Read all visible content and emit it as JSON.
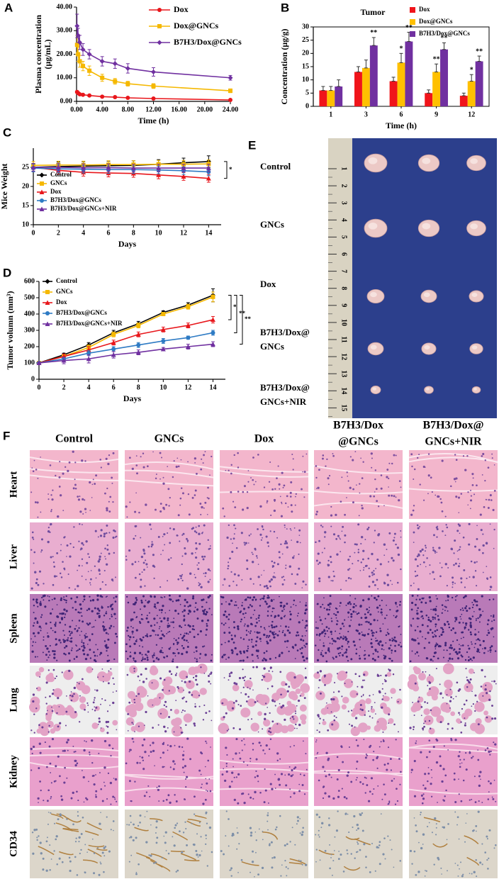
{
  "panel_labels": [
    "A",
    "B",
    "C",
    "D",
    "E",
    "F"
  ],
  "chart_data": [
    {
      "type": "line",
      "xlabel": "Time (h)",
      "ylabel": [
        "Plasma concentration",
        "(μg/mL)"
      ],
      "xlim": [
        0,
        24
      ],
      "ylim": [
        0,
        40
      ],
      "xticks": [
        {
          "value": 0,
          "label": "0.00"
        },
        {
          "value": 4,
          "label": "4.00"
        },
        {
          "value": 8,
          "label": "8.00"
        },
        {
          "value": 12,
          "label": "12.00"
        },
        {
          "value": 16,
          "label": "16.00"
        },
        {
          "value": 20,
          "label": "20.00"
        },
        {
          "value": 24,
          "label": "24.00"
        }
      ],
      "yticks": [
        {
          "value": 0,
          "label": "0.00"
        },
        {
          "value": 10,
          "label": "10.00"
        },
        {
          "value": 20,
          "label": "20.00"
        },
        {
          "value": 30,
          "label": "30.00"
        },
        {
          "value": 40,
          "label": "40.00"
        }
      ],
      "legend": "upper right",
      "x": [
        0.083,
        0.25,
        0.5,
        1,
        2,
        4,
        6,
        8,
        12,
        24
      ],
      "series": [
        {
          "name": "Dox",
          "color": "#e8161b",
          "marker": "circle",
          "values": [
            4,
            3.5,
            3,
            2.8,
            2.5,
            2,
            1.8,
            1.5,
            1.2,
            0.6
          ],
          "errors": [
            0.5,
            0.4,
            0.3,
            0.3,
            0.2,
            0.2,
            0.2,
            0.2,
            0.2,
            0.2
          ]
        },
        {
          "name": "Dox@GNCs",
          "color": "#f5b800",
          "marker": "square",
          "values": [
            24,
            20,
            17,
            15,
            13,
            10,
            8.5,
            7.5,
            6.5,
            4.5
          ],
          "errors": [
            4,
            3,
            2.5,
            2,
            2,
            1.5,
            1.2,
            1,
            1,
            0.8
          ]
        },
        {
          "name": "B7H3/Dox@GNCs",
          "color": "#7030a0",
          "marker": "diamond",
          "values": [
            32,
            28,
            25,
            22,
            20,
            17,
            16,
            14,
            12.5,
            10
          ],
          "errors": [
            5,
            3,
            3,
            2.5,
            2,
            2,
            2,
            2,
            1.8,
            1
          ]
        }
      ]
    },
    {
      "type": "bar",
      "title": "Tumor",
      "xlabel": "Time (h)",
      "ylabel": [
        "Concentration (μg/g)"
      ],
      "ylim": [
        0,
        30
      ],
      "yticks": [
        0,
        5,
        10,
        15,
        20,
        25,
        30
      ],
      "legend": "upper right",
      "categories": [
        "1",
        "3",
        "6",
        "9",
        "12"
      ],
      "series": [
        {
          "name": "Dox",
          "color": "#f0141a",
          "values": [
            6,
            13,
            9.5,
            5,
            4
          ],
          "errors": [
            1.5,
            2,
            1.5,
            1.2,
            1
          ],
          "significance": [
            null,
            null,
            null,
            null,
            null
          ]
        },
        {
          "name": "Dox@GNCs",
          "color": "#ffc000",
          "values": [
            6,
            14.5,
            16.5,
            13,
            9.5
          ],
          "errors": [
            1.5,
            3,
            3.5,
            3,
            2.5
          ],
          "significance": [
            null,
            null,
            "*",
            "**",
            "*"
          ]
        },
        {
          "name": "B7H3/Dox@GNCs",
          "color": "#7030a0",
          "values": [
            7.5,
            23,
            24.5,
            21.5,
            17
          ],
          "errors": [
            2.5,
            3,
            3.5,
            2.5,
            2
          ],
          "significance": [
            null,
            "**",
            "**",
            "**",
            "**"
          ]
        }
      ]
    },
    {
      "type": "line",
      "xlabel": "Days",
      "ylabel": [
        "Mice Weight"
      ],
      "xlim": [
        0,
        15
      ],
      "ylim": [
        10,
        30
      ],
      "xticks": [
        0,
        2,
        4,
        6,
        8,
        10,
        12,
        14
      ],
      "yticks": [
        10,
        15,
        20,
        25
      ],
      "legend": "lower left",
      "significance": [
        "*"
      ],
      "x": [
        0,
        2,
        4,
        6,
        8,
        10,
        12,
        14
      ],
      "series": [
        {
          "name": "Control",
          "color": "#000000",
          "marker": "diamond",
          "values": [
            25,
            25.2,
            25.3,
            25.4,
            25.5,
            25.8,
            26.2,
            26.5
          ],
          "errors": [
            1,
            1.2,
            1.2,
            1.2,
            1.2,
            1.2,
            1.2,
            1.5
          ]
        },
        {
          "name": "GNCs",
          "color": "#f5b800",
          "marker": "square",
          "values": [
            25.5,
            25.6,
            25.6,
            25.7,
            25.7,
            25.8,
            25.8,
            25.9
          ],
          "errors": [
            1,
            1,
            1,
            1,
            1,
            1,
            1,
            1
          ]
        },
        {
          "name": "Dox",
          "color": "#e8161b",
          "marker": "triangle",
          "values": [
            25,
            24.2,
            23.7,
            23.5,
            23.4,
            23,
            22.6,
            22.1
          ],
          "errors": [
            1,
            1,
            1,
            1,
            1,
            1,
            1,
            1
          ]
        },
        {
          "name": "B7H3/Dox@GNCs",
          "color": "#2e7bc4",
          "marker": "circle",
          "values": [
            24.8,
            24.6,
            24.5,
            24.4,
            24.4,
            24.3,
            24.1,
            23.8
          ],
          "errors": [
            1,
            1,
            1,
            1,
            1,
            1,
            1,
            1
          ]
        },
        {
          "name": "B7H3/Dox@GNCs+NIR",
          "color": "#7030a0",
          "marker": "triangle",
          "values": [
            25,
            25,
            24.9,
            24.9,
            24.8,
            24.8,
            24.8,
            24.8
          ],
          "errors": [
            1,
            1,
            1,
            1,
            1,
            1,
            1,
            1
          ]
        }
      ]
    },
    {
      "type": "line",
      "xlabel": "Days",
      "ylabel": [
        "Tumor volumn (mm³)"
      ],
      "xlim": [
        0,
        15
      ],
      "ylim": [
        0,
        600
      ],
      "xticks": [
        0,
        2,
        4,
        6,
        8,
        10,
        12,
        14
      ],
      "yticks": [
        0,
        100,
        200,
        300,
        400,
        500,
        600
      ],
      "legend": "upper left",
      "significance": [
        "*",
        "**",
        "**"
      ],
      "x": [
        0,
        2,
        4,
        6,
        8,
        10,
        12,
        14
      ],
      "series": [
        {
          "name": "Control",
          "color": "#000000",
          "marker": "diamond",
          "values": [
            100,
            150,
            210,
            285,
            340,
            410,
            455,
            515
          ],
          "errors": [
            5,
            10,
            15,
            15,
            15,
            10,
            15,
            40
          ]
        },
        {
          "name": "GNCs",
          "color": "#f5b800",
          "marker": "square",
          "values": [
            100,
            140,
            195,
            275,
            330,
            400,
            445,
            505
          ],
          "errors": [
            5,
            10,
            15,
            15,
            15,
            10,
            15,
            30
          ]
        },
        {
          "name": "Dox",
          "color": "#e8161b",
          "marker": "triangle",
          "values": [
            100,
            140,
            180,
            225,
            275,
            305,
            330,
            365
          ],
          "errors": [
            5,
            15,
            20,
            15,
            15,
            15,
            15,
            20
          ]
        },
        {
          "name": "B7H3/Dox@GNCs",
          "color": "#2e7bc4",
          "marker": "circle",
          "values": [
            100,
            125,
            160,
            185,
            210,
            235,
            255,
            285
          ],
          "errors": [
            5,
            10,
            15,
            15,
            15,
            15,
            10,
            15
          ]
        },
        {
          "name": "B7H3/Dox@GNCs+NIR",
          "color": "#7030a0",
          "marker": "triangle",
          "values": [
            100,
            115,
            125,
            150,
            165,
            185,
            200,
            215
          ],
          "errors": [
            5,
            20,
            25,
            20,
            15,
            10,
            15,
            15
          ]
        }
      ]
    }
  ],
  "tumor_photo": {
    "groups": [
      [
        "Control"
      ],
      [
        "GNCs"
      ],
      [
        "Dox"
      ],
      [
        "B7H3/Dox@",
        "GNCs"
      ],
      [
        "B7H3/Dox@",
        "GNCs+NIR"
      ]
    ],
    "ruler": [
      1,
      2,
      3,
      4,
      5,
      6,
      7,
      8,
      9,
      10,
      11,
      12,
      13,
      14,
      15
    ]
  },
  "histology": {
    "columns": [
      [
        "Control"
      ],
      [
        "GNCs"
      ],
      [
        "Dox"
      ],
      [
        "B7H3/Dox",
        "@GNCs"
      ],
      [
        "B7H3/Dox@",
        "GNCs+NIR"
      ]
    ],
    "rows": [
      "Heart",
      "Liver",
      "Spleen",
      "Lung",
      "Kidney",
      "CD34"
    ]
  }
}
